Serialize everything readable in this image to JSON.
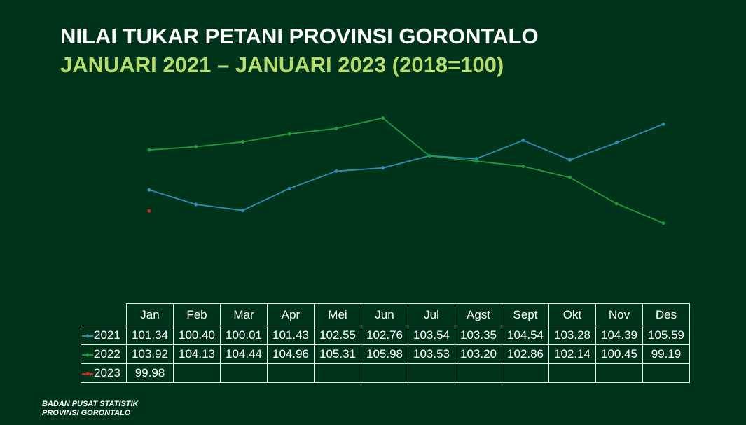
{
  "chart_data": {
    "type": "line",
    "title": "NILAI TUKAR PETANI PROVINSI GORONTALO",
    "subtitle": "JANUARI 2021 – JANUARI 2023 (2018=100)",
    "categories": [
      "Jan",
      "Feb",
      "Mar",
      "Apr",
      "Mei",
      "Jun",
      "Jul",
      "Agst",
      "Sept",
      "Okt",
      "Nov",
      "Des"
    ],
    "series": [
      {
        "name": "2021",
        "color": "#2b8fba",
        "values": [
          101.34,
          100.4,
          100.01,
          101.43,
          102.55,
          102.76,
          103.54,
          103.35,
          104.54,
          103.28,
          104.39,
          105.59
        ],
        "value_labels": [
          "101.34",
          "100.40",
          "100.01",
          "101.43",
          "102.55",
          "102.76",
          "103.54",
          "103.35",
          "104.54",
          "103.28",
          "104.39",
          "105.59"
        ]
      },
      {
        "name": "2022",
        "color": "#1f9a3c",
        "values": [
          103.92,
          104.13,
          104.44,
          104.96,
          105.31,
          105.98,
          103.53,
          103.2,
          102.86,
          102.14,
          100.45,
          99.19
        ],
        "value_labels": [
          "103.92",
          "104.13",
          "104.44",
          "104.96",
          "105.31",
          "105.98",
          "103.53",
          "103.20",
          "102.86",
          "102.14",
          "100.45",
          "99.19"
        ]
      },
      {
        "name": "2023",
        "color": "#d2281c",
        "values": [
          99.98,
          null,
          null,
          null,
          null,
          null,
          null,
          null,
          null,
          null,
          null,
          null
        ],
        "value_labels": [
          "99.98",
          null,
          null,
          null,
          null,
          null,
          null,
          null,
          null,
          null,
          null,
          null
        ]
      }
    ],
    "ylim": [
      98,
      108
    ]
  },
  "org": {
    "line1": "BADAN PUSAT STATISTIK",
    "line2": "PROVINSI GORONTALO"
  }
}
